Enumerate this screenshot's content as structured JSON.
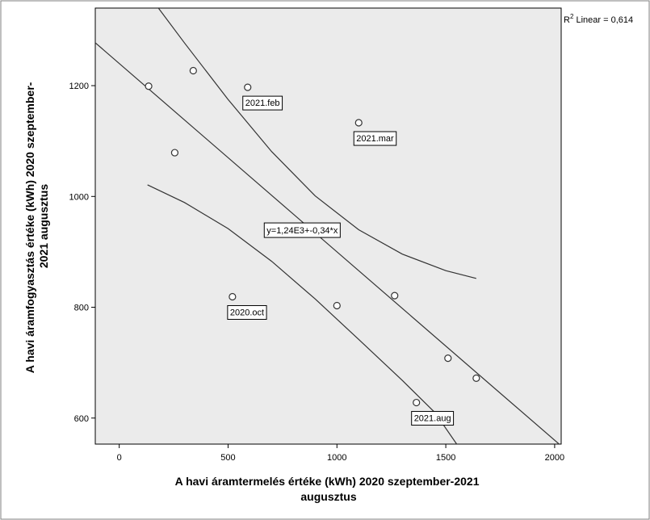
{
  "chart_data": {
    "type": "scatter",
    "xlabel": [
      "A havi áramtermelés értéke (kWh) 2020 szeptember-2021",
      "augusztus"
    ],
    "ylabel": [
      "A havi áramfogyasztás értéke (kWh) 2020 szeptember-",
      "2021 augusztus"
    ],
    "xlim": [
      -110,
      2030
    ],
    "ylim": [
      553,
      1340
    ],
    "x_ticks": [
      0,
      500,
      1000,
      1500,
      2000
    ],
    "y_ticks": [
      600,
      800,
      1000,
      1200
    ],
    "points": [
      {
        "x": 135,
        "y": 1199,
        "label": ""
      },
      {
        "x": 340,
        "y": 1227,
        "label": ""
      },
      {
        "x": 590,
        "y": 1197,
        "label": "2021.feb"
      },
      {
        "x": 255,
        "y": 1079,
        "label": ""
      },
      {
        "x": 1100,
        "y": 1133,
        "label": "2021.mar"
      },
      {
        "x": 520,
        "y": 819,
        "label": "2020.oct"
      },
      {
        "x": 1000,
        "y": 803,
        "label": ""
      },
      {
        "x": 1265,
        "y": 821,
        "label": ""
      },
      {
        "x": 1510,
        "y": 708,
        "label": ""
      },
      {
        "x": 1640,
        "y": 672,
        "label": ""
      },
      {
        "x": 1365,
        "y": 628,
        "label": "2021.aug"
      }
    ],
    "fit_line": {
      "intercept": 1240,
      "slope": -0.34,
      "equation_label": "y=1,24E3+-0,34*x"
    },
    "confidence_upper": [
      [
        180,
        1340
      ],
      [
        300,
        1277
      ],
      [
        500,
        1175
      ],
      [
        700,
        1081
      ],
      [
        900,
        1001
      ],
      [
        1100,
        940
      ],
      [
        1300,
        896
      ],
      [
        1500,
        866
      ],
      [
        1640,
        852
      ]
    ],
    "confidence_lower": [
      [
        130,
        1021
      ],
      [
        300,
        989
      ],
      [
        500,
        942
      ],
      [
        700,
        883
      ],
      [
        900,
        815
      ],
      [
        1100,
        742
      ],
      [
        1300,
        668
      ],
      [
        1450,
        610
      ],
      [
        1550,
        553
      ]
    ],
    "r2_label": "R",
    "r2_sup": "2",
    "r2_rest": " Linear = 0,614",
    "grid": false,
    "plot_background": "#ebebeb",
    "line_color": "#333333"
  }
}
